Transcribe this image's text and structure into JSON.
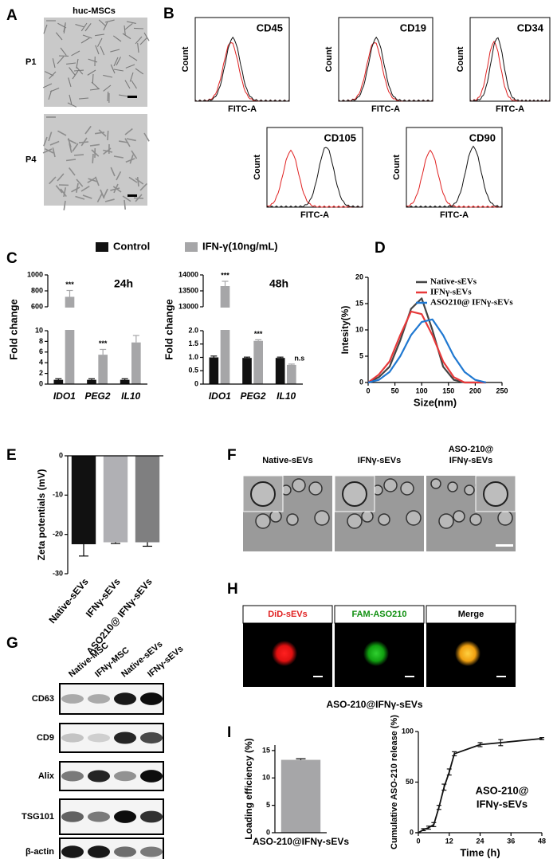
{
  "figure": {
    "panel_labels": [
      "A",
      "B",
      "C",
      "D",
      "E",
      "F",
      "G",
      "H",
      "I"
    ],
    "A": {
      "title": "huc-MSCs",
      "rows": [
        "P1",
        "P4"
      ]
    },
    "B": {
      "markers": [
        "CD45",
        "CD19",
        "CD34",
        "CD105",
        "CD90"
      ],
      "ylabel": "Count",
      "xlabel": "FITC-A"
    },
    "F": {
      "labels": [
        [
          "Native-sEVs"
        ],
        [
          "IFNγ-sEVs"
        ],
        [
          "ASO-210@",
          "IFNγ-sEVs"
        ]
      ]
    },
    "G": {
      "lanes": [
        "Native-MSC",
        "IFNγ-MSC",
        "Native-sEVs",
        "IFNγ-sEVs"
      ],
      "proteins": [
        "CD63",
        "CD9",
        "Alix",
        "TSG101",
        "β-actin"
      ]
    },
    "H": {
      "channels": [
        "DiD-sEVs",
        "FAM-ASO210",
        "Merge"
      ],
      "caption": "ASO-210@IFNγ-sEVs"
    }
  },
  "chart_data": [
    {
      "type": "broken_bar",
      "title": "24h",
      "ylabel": "Fold change",
      "categories": [
        "IDO1",
        "PEG2",
        "IL10"
      ],
      "series": [
        {
          "name": "Control",
          "color": "#111111",
          "values": [
            0.8,
            0.8,
            0.8
          ],
          "errors": [
            0.2,
            0.2,
            0.2
          ]
        },
        {
          "name": "IFN-γ(10ng/mL)",
          "color": "#a6a6a8",
          "values": [
            725,
            5.5,
            7.8
          ],
          "errors": [
            80,
            1,
            1.3
          ]
        }
      ],
      "segments": [
        {
          "ylim": [
            0,
            10
          ],
          "yticks": [
            0,
            2,
            4,
            6,
            8,
            10
          ]
        },
        {
          "ylim": [
            600,
            1000
          ],
          "yticks": [
            600,
            800,
            1000
          ]
        }
      ],
      "annotations": [
        "***",
        "***",
        "***"
      ]
    },
    {
      "type": "broken_bar",
      "title": "48h",
      "ylabel": "Fold change",
      "categories": [
        "IDO1",
        "PEG2",
        "IL10"
      ],
      "series": [
        {
          "name": "Control",
          "color": "#111111",
          "values": [
            1.0,
            0.98,
            0.98
          ],
          "errors": [
            0.05,
            0.03,
            0.03
          ]
        },
        {
          "name": "IFN-γ(10ng/mL)",
          "color": "#a6a6a8",
          "values": [
            13650,
            1.62,
            0.72
          ],
          "errors": [
            150,
            0.04,
            0.03
          ]
        }
      ],
      "segments": [
        {
          "ylim": [
            0,
            2
          ],
          "yticks": [
            0,
            0.5,
            {
              "value": 1,
              "label": "1.0"
            },
            1.5,
            {
              "value": 2,
              "label": "2.0"
            }
          ]
        },
        {
          "ylim": [
            13000,
            14000
          ],
          "yticks": [
            13000,
            13500,
            14000
          ]
        }
      ],
      "annotations": [
        "***",
        "***",
        "n.s"
      ]
    },
    {
      "type": "line",
      "xlabel": "Size(nm)",
      "ylabel": "Intesity(%)",
      "x": [
        0,
        20,
        40,
        60,
        80,
        100,
        120,
        140,
        160,
        180,
        200,
        220
      ],
      "series": [
        {
          "name": "Native-sEVs",
          "color": "#444444",
          "values": [
            0,
            1,
            3,
            8,
            14,
            16,
            10,
            3,
            0.5,
            0,
            0,
            0
          ]
        },
        {
          "name": "IFNγ-sEVs",
          "color": "#e8393a",
          "values": [
            0,
            1.5,
            4,
            9,
            13.5,
            13,
            9,
            4,
            1,
            0,
            0,
            0
          ]
        },
        {
          "name": "ASO210@ IFNγ-sEVs",
          "color": "#1f78d1",
          "values": [
            0,
            0.5,
            2,
            5,
            9,
            11.5,
            12,
            9,
            5,
            2,
            0.5,
            0
          ]
        }
      ],
      "xlim": [
        0,
        250
      ],
      "xticks": [
        0,
        50,
        100,
        150,
        200,
        250
      ],
      "ylim": [
        0,
        20
      ],
      "yticks": [
        0,
        5,
        10,
        15,
        20
      ]
    },
    {
      "type": "bar",
      "ylabel": "Zeta potentials (mV)",
      "categories": [
        "Native-sEVs",
        "IFNγ-sEVs",
        "ASO210@ IFNγ-sEVs"
      ],
      "values": [
        -22.5,
        -22,
        -22
      ],
      "errors": [
        3,
        0.3,
        1
      ],
      "colors": [
        "#111111",
        "#b0b0b4",
        "#7f7f80"
      ],
      "ylim": [
        -30,
        0
      ],
      "yticks": [
        -30,
        -20,
        -10,
        0
      ]
    },
    {
      "type": "bar",
      "ylabel": "Loading efficiency (%)",
      "categories": [
        "ASO-210@IFNγ-sEVs"
      ],
      "values": [
        13.3
      ],
      "errors": [
        0.2
      ],
      "colors": [
        "#a6a6a8"
      ],
      "ylim": [
        0,
        16
      ],
      "yticks": [
        0,
        5,
        10,
        15
      ]
    },
    {
      "type": "error_line",
      "xlabel": "Time (h)",
      "ylabel": "Cumulative ASO-210 release (%)",
      "annotations": [
        "ASO-210@",
        "IFNγ-sEVs"
      ],
      "x": [
        0,
        2,
        4,
        6,
        8,
        10,
        12,
        14,
        24,
        32,
        48
      ],
      "series": [
        {
          "color": "#111111",
          "values": [
            0,
            3,
            5,
            8,
            25,
            45,
            60,
            78,
            87,
            89,
            93
          ],
          "errors": [
            0,
            1,
            1.5,
            2,
            2,
            3,
            3,
            2,
            2,
            3,
            1
          ]
        }
      ],
      "xlim": [
        0,
        48
      ],
      "xticks": [
        0,
        12,
        24,
        36,
        48
      ],
      "ylim": [
        0,
        100
      ],
      "yticks": [
        0,
        50,
        100
      ]
    }
  ]
}
